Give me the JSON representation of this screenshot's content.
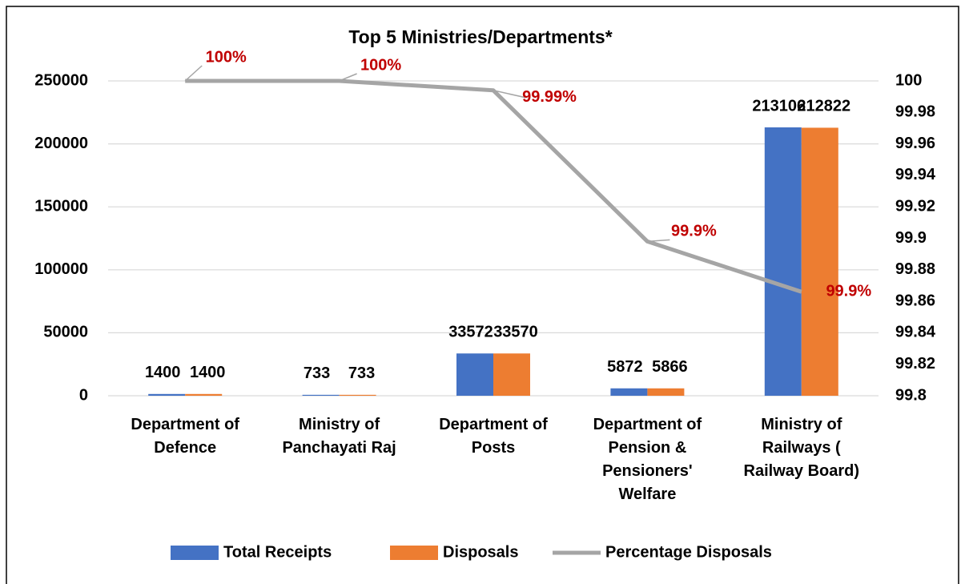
{
  "chart_data": {
    "type": "bar-line",
    "title": "Top 5 Ministries/Departments*",
    "categories": [
      "Department of Defence",
      "Ministry of Panchayati Raj",
      "Department of Posts",
      "Department of Pension & Pensioners' Welfare",
      "Ministry of Railways ( Railway Board)"
    ],
    "series": [
      {
        "name": "Total Receipts",
        "type": "bar",
        "color": "#4472c4",
        "values": [
          1400,
          733,
          33572,
          5872,
          213106
        ]
      },
      {
        "name": "Disposals",
        "type": "bar",
        "color": "#ed7d31",
        "values": [
          1400,
          733,
          33570,
          5866,
          212822
        ]
      },
      {
        "name": "Percentage Disposals",
        "type": "line",
        "axis": "y2",
        "color": "#a5a5a5",
        "values": [
          100,
          100,
          99.994,
          99.898,
          99.866
        ],
        "value_labels": [
          "100%",
          "100%",
          "99.99%",
          "99.9%",
          "99.9%"
        ]
      }
    ],
    "ylim": [
      0,
      250000
    ],
    "yticks": [
      0,
      50000,
      100000,
      150000,
      200000,
      250000
    ],
    "y2lim": [
      99.8,
      100
    ],
    "y2ticks": [
      99.8,
      99.82,
      99.84,
      99.86,
      99.88,
      99.9,
      99.92,
      99.94,
      99.96,
      99.98,
      100
    ],
    "grid": true,
    "legend": "bottom"
  }
}
